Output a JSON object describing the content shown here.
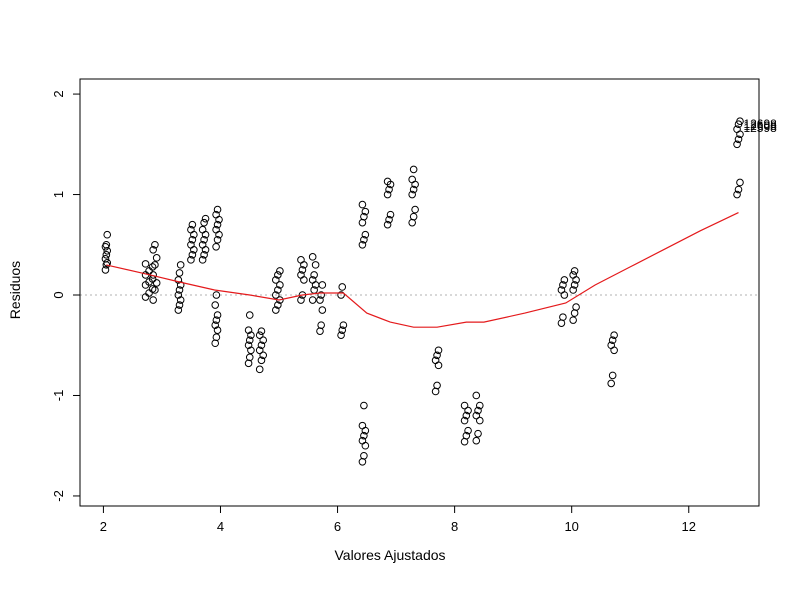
{
  "chart_data": {
    "type": "scatter",
    "title": "",
    "xlabel": "Valores Ajustados",
    "ylabel": "Residuos",
    "xlim": [
      1.6,
      13.2
    ],
    "ylim": [
      -2.1,
      2.15
    ],
    "x_ticks": [
      2,
      4,
      6,
      8,
      10,
      12
    ],
    "y_ticks": [
      -2,
      -1,
      0,
      1,
      2
    ],
    "x_tick_labels": [
      "2",
      "4",
      "6",
      "8",
      "10",
      "12"
    ],
    "y_tick_labels": [
      "-2",
      "-1",
      "0",
      "1",
      "2"
    ],
    "reference_line": {
      "y": 0,
      "style": "dotted",
      "color": "#b0b0b0"
    },
    "grid": false,
    "colors": {
      "points": "#000000",
      "smooth": "#e41a1c",
      "reference": "#b0b0b0"
    },
    "clusters": [
      {
        "x": 2.05,
        "dx": 0.03,
        "y": [
          0.25,
          0.3,
          0.32,
          0.36,
          0.4,
          0.44,
          0.48,
          0.5,
          0.6
        ]
      },
      {
        "x": 2.78,
        "dx": 0.12,
        "y": [
          -0.02,
          0.02,
          0.06,
          0.1,
          0.13,
          0.16,
          0.2,
          0.24,
          0.28,
          0.31
        ]
      },
      {
        "x": 2.88,
        "dx": 0.06,
        "y": [
          -0.05,
          0.05,
          0.12,
          0.2,
          0.3,
          0.37,
          0.45,
          0.5
        ]
      },
      {
        "x": 3.3,
        "dx": 0.04,
        "y": [
          -0.15,
          -0.1,
          -0.05,
          0.0,
          0.05,
          0.1,
          0.15,
          0.22,
          0.3
        ]
      },
      {
        "x": 3.52,
        "dx": 0.05,
        "y": [
          0.35,
          0.4,
          0.45,
          0.5,
          0.55,
          0.6,
          0.65,
          0.7
        ]
      },
      {
        "x": 3.72,
        "dx": 0.05,
        "y": [
          0.35,
          0.4,
          0.45,
          0.5,
          0.55,
          0.6,
          0.65,
          0.72,
          0.76
        ]
      },
      {
        "x": 3.95,
        "dx": 0.05,
        "y": [
          0.48,
          0.55,
          0.6,
          0.65,
          0.7,
          0.75,
          0.8,
          0.85
        ]
      },
      {
        "x": 3.93,
        "dx": 0.04,
        "y": [
          -0.48,
          -0.42,
          -0.35,
          -0.3,
          -0.25,
          -0.2,
          -0.1,
          0.0
        ]
      },
      {
        "x": 4.5,
        "dx": 0.04,
        "y": [
          -0.68,
          -0.62,
          -0.55,
          -0.5,
          -0.45,
          -0.4,
          -0.35,
          -0.2
        ]
      },
      {
        "x": 4.7,
        "dx": 0.06,
        "y": [
          -0.74,
          -0.65,
          -0.6,
          -0.55,
          -0.5,
          -0.45,
          -0.4,
          -0.36
        ]
      },
      {
        "x": 4.98,
        "dx": 0.07,
        "y": [
          -0.15,
          -0.1,
          -0.05,
          0.0,
          0.05,
          0.1,
          0.15,
          0.2,
          0.24
        ]
      },
      {
        "x": 5.4,
        "dx": 0.05,
        "y": [
          -0.05,
          0.0,
          0.15,
          0.2,
          0.25,
          0.3,
          0.35
        ]
      },
      {
        "x": 5.6,
        "dx": 0.05,
        "y": [
          -0.05,
          0.05,
          0.1,
          0.15,
          0.2,
          0.3,
          0.38
        ]
      },
      {
        "x": 5.72,
        "dx": 0.04,
        "y": [
          -0.36,
          -0.3,
          -0.15,
          -0.05,
          0.0,
          0.1
        ]
      },
      {
        "x": 6.08,
        "dx": 0.04,
        "y": [
          -0.4,
          -0.35,
          -0.3,
          0.0,
          0.08
        ]
      },
      {
        "x": 6.45,
        "dx": 0.05,
        "y": [
          0.5,
          0.55,
          0.6,
          0.72,
          0.78,
          0.83,
          0.9
        ]
      },
      {
        "x": 6.45,
        "dx": 0.05,
        "y": [
          -1.66,
          -1.6,
          -1.5,
          -1.45,
          -1.4,
          -1.35,
          -1.3,
          -1.1
        ]
      },
      {
        "x": 6.88,
        "dx": 0.05,
        "y": [
          0.7,
          0.75,
          0.8,
          1.0,
          1.05,
          1.1,
          1.13
        ]
      },
      {
        "x": 7.3,
        "dx": 0.05,
        "y": [
          0.72,
          0.78,
          0.85,
          1.0,
          1.05,
          1.1,
          1.15,
          1.25
        ]
      },
      {
        "x": 7.7,
        "dx": 0.05,
        "y": [
          -0.96,
          -0.9,
          -0.7,
          -0.65,
          -0.6,
          -0.55
        ]
      },
      {
        "x": 8.2,
        "dx": 0.06,
        "y": [
          -1.46,
          -1.4,
          -1.35,
          -1.25,
          -1.2,
          -1.15,
          -1.1
        ]
      },
      {
        "x": 8.4,
        "dx": 0.06,
        "y": [
          -1.45,
          -1.38,
          -1.25,
          -1.2,
          -1.15,
          -1.1,
          -1.0
        ]
      },
      {
        "x": 9.85,
        "dx": 0.05,
        "y": [
          -0.28,
          -0.22,
          0.0,
          0.05,
          0.1,
          0.15
        ]
      },
      {
        "x": 10.05,
        "dx": 0.05,
        "y": [
          -0.25,
          -0.18,
          -0.12,
          0.05,
          0.1,
          0.15,
          0.2,
          0.24
        ]
      },
      {
        "x": 10.7,
        "dx": 0.05,
        "y": [
          -0.88,
          -0.8,
          -0.55,
          -0.5,
          -0.45,
          -0.4
        ]
      },
      {
        "x": 12.85,
        "dx": 0.05,
        "y": [
          1.0,
          1.05,
          1.12,
          1.5,
          1.55,
          1.6,
          1.65,
          1.7,
          1.73
        ]
      }
    ],
    "smooth_line": {
      "x": [
        2.05,
        2.8,
        3.3,
        3.9,
        4.5,
        5.0,
        5.4,
        5.7,
        6.1,
        6.5,
        6.9,
        7.3,
        7.7,
        8.2,
        8.5,
        9.2,
        9.9,
        10.4,
        11.0,
        11.6,
        12.2,
        12.85
      ],
      "y": [
        0.3,
        0.2,
        0.13,
        0.05,
        0.0,
        -0.05,
        0.0,
        0.02,
        0.02,
        -0.18,
        -0.27,
        -0.32,
        -0.32,
        -0.27,
        -0.27,
        -0.18,
        -0.08,
        0.1,
        0.28,
        0.46,
        0.64,
        0.82
      ]
    },
    "point_labels": [
      {
        "text": "12698",
        "x": 12.9,
        "y": 1.7
      },
      {
        "text": "12608",
        "x": 12.9,
        "y": 1.68
      },
      {
        "text": "12598",
        "x": 12.9,
        "y": 1.66
      }
    ]
  }
}
